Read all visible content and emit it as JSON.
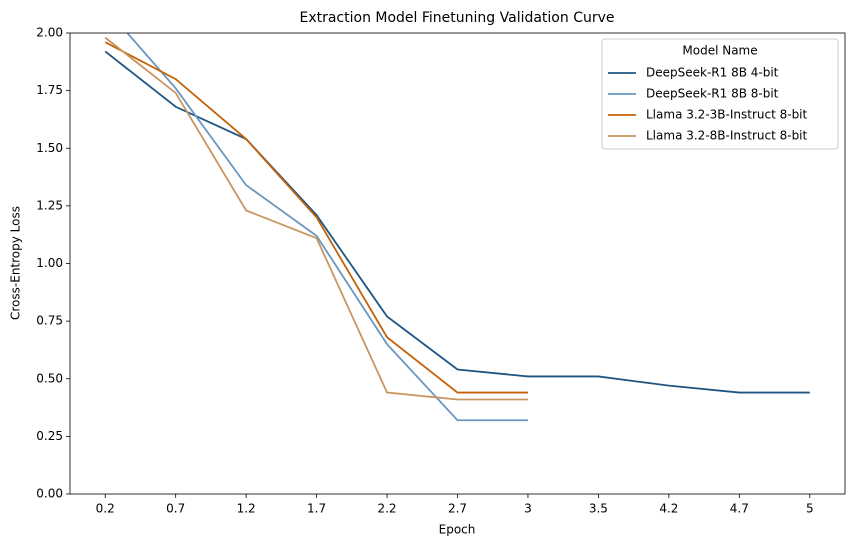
{
  "chart_data": {
    "type": "line",
    "title": "Extraction Model Finetuning Validation Curve",
    "x_label": "Epoch",
    "y_label": "Cross-Entropy Loss",
    "categories": [
      "0.2",
      "0.7",
      "1.2",
      "1.7",
      "2.2",
      "2.7",
      "3",
      "3.5",
      "4.2",
      "4.7",
      "5"
    ],
    "series": [
      {
        "name": "DeepSeek-R1 8B 4-bit",
        "color": "#1f5582",
        "values": [
          1.92,
          1.68,
          1.54,
          1.21,
          0.77,
          0.54,
          0.51,
          0.51,
          0.47,
          0.44,
          0.44
        ]
      },
      {
        "name": "DeepSeek-R1 8B 8-bit",
        "color": "#6a97bf",
        "values": [
          2.11,
          1.76,
          1.34,
          1.12,
          0.65,
          0.32,
          0.32,
          null,
          null,
          null,
          null
        ]
      },
      {
        "name": "Llama 3.2-3B-Instruct 8-bit",
        "color": "#c4620a",
        "values": [
          1.96,
          1.8,
          1.54,
          1.2,
          0.68,
          0.44,
          0.44,
          null,
          null,
          null,
          null
        ]
      },
      {
        "name": "Llama 3.2-8B-Instruct 8-bit",
        "color": "#c8955e",
        "values": [
          1.98,
          1.74,
          1.23,
          1.11,
          0.44,
          0.41,
          0.41,
          null,
          null,
          null,
          null
        ]
      }
    ],
    "legend_title": "Model Name",
    "legend": "upper right",
    "ylim": [
      0,
      2
    ],
    "yticks": [
      {
        "value": 0,
        "label": "0.00"
      },
      {
        "value": 0.25,
        "label": "0.25"
      },
      {
        "value": 0.5,
        "label": "0.50"
      },
      {
        "value": 0.75,
        "label": "0.75"
      },
      {
        "value": 1,
        "label": "1.00"
      },
      {
        "value": 1.25,
        "label": "1.25"
      },
      {
        "value": 1.5,
        "label": "1.50"
      },
      {
        "value": 1.75,
        "label": "1.75"
      },
      {
        "value": 2,
        "label": "2.00"
      }
    ]
  }
}
